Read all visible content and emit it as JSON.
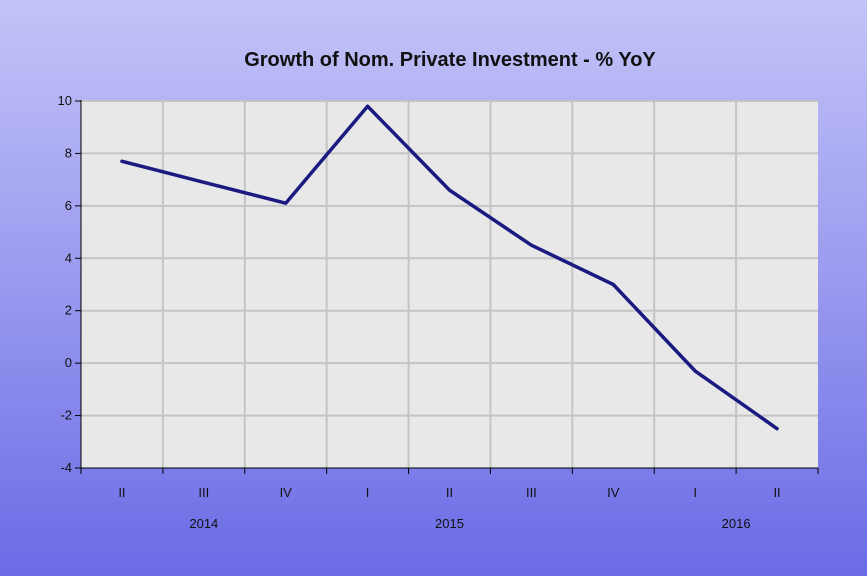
{
  "chart_data": {
    "type": "line",
    "title": "Growth of Nom. Private Investment - % YoY",
    "xlabel": "",
    "ylabel": "",
    "ylim": [
      -4,
      10
    ],
    "yticks": [
      "10",
      "8",
      "6",
      "4",
      "2",
      "0",
      "-2",
      "-4"
    ],
    "quarter_labels": [
      "II",
      "III",
      "IV",
      "I",
      "II",
      "III",
      "IV",
      "I",
      "II"
    ],
    "year_labels": [
      {
        "label": "2014",
        "quarter_index": 1
      },
      {
        "label": "2015",
        "quarter_index": 4
      },
      {
        "label": "2016",
        "quarter_index": 7.5
      }
    ],
    "x": [
      "2014 Q2",
      "2014 Q3",
      "2014 Q4",
      "2015 Q1",
      "2015 Q2",
      "2015 Q3",
      "2015 Q4",
      "2016 Q1",
      "2016 Q2"
    ],
    "series": [
      {
        "values": [
          7.7,
          6.9,
          6.1,
          9.8,
          6.6,
          4.5,
          3.0,
          -0.3,
          -2.5
        ],
        "color": "#1a1a80"
      }
    ],
    "grid": true,
    "plot_background": "#e8e8e8"
  }
}
